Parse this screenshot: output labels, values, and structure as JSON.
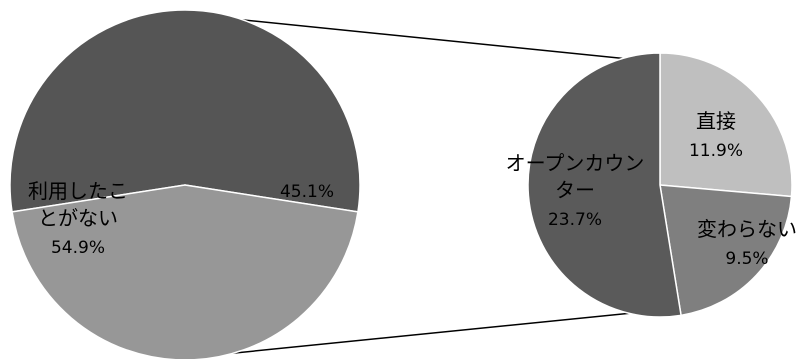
{
  "chart_data": [
    {
      "type": "pie",
      "slices": [
        {
          "label_lines": [
            "利用したこ",
            "とがない"
          ],
          "percent_text": "54.9%",
          "value": 54.9,
          "color": "#555555"
        },
        {
          "label_lines": [],
          "percent_text": "45.1%",
          "value": 45.1,
          "color": "#979797"
        }
      ]
    },
    {
      "type": "pie",
      "slices": [
        {
          "label_lines": [
            "直接"
          ],
          "percent_text": "11.9%",
          "value": 11.9,
          "color": "#bfbfbf"
        },
        {
          "label_lines": [
            "変わらない"
          ],
          "percent_text": "9.5%",
          "value": 9.5,
          "color": "#7f7f7f"
        },
        {
          "label_lines": [
            "オープンカウン",
            "ター"
          ],
          "percent_text": "23.7%",
          "value": 23.7,
          "color": "#5a5a5a"
        }
      ]
    }
  ]
}
